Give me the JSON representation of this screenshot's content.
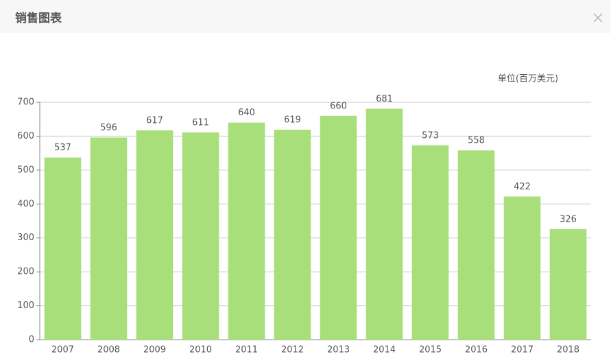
{
  "header": {
    "title": "销售图表"
  },
  "chart_data": {
    "type": "bar",
    "unit_label": "单位(百万美元)",
    "categories": [
      "2007",
      "2008",
      "2009",
      "2010",
      "2011",
      "2012",
      "2013",
      "2014",
      "2015",
      "2016",
      "2017",
      "2018"
    ],
    "values": [
      537,
      596,
      617,
      611,
      640,
      619,
      660,
      681,
      573,
      558,
      422,
      326
    ],
    "color": "#a9df7a",
    "ylim": [
      0,
      700
    ],
    "yticks": [
      0,
      100,
      200,
      300,
      400,
      500,
      600,
      700
    ],
    "grid": true
  }
}
